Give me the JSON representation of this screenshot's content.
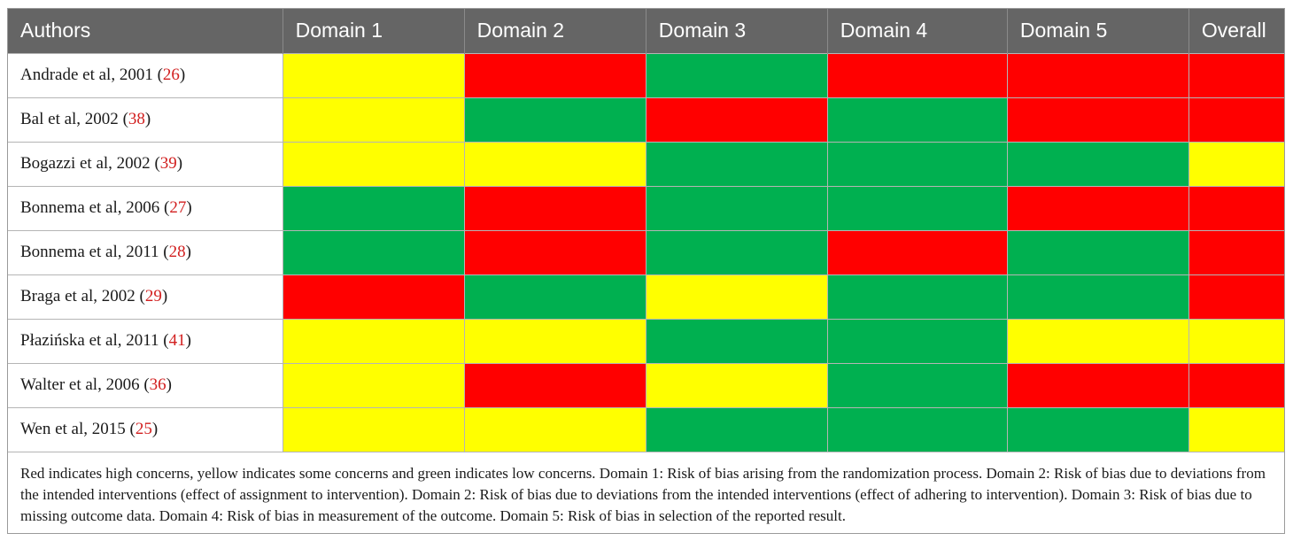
{
  "colors": {
    "header_bg": "#656565",
    "high": "#ff0000",
    "some": "#ffff00",
    "low": "#00b050",
    "reference": "#d21f1f"
  },
  "table": {
    "headers": [
      "Authors",
      "Domain 1",
      "Domain 2",
      "Domain 3",
      "Domain 4",
      "Domain 5",
      "Overall"
    ],
    "rows": [
      {
        "author": "Andrade et al, 2001",
        "ref": "26",
        "ratings": [
          "some",
          "high",
          "low",
          "high",
          "high",
          "high"
        ]
      },
      {
        "author": "Bal et al, 2002",
        "ref": "38",
        "ratings": [
          "some",
          "low",
          "high",
          "low",
          "high",
          "high"
        ]
      },
      {
        "author": "Bogazzi et al, 2002",
        "ref": "39",
        "ratings": [
          "some",
          "some",
          "low",
          "low",
          "low",
          "some"
        ]
      },
      {
        "author": "Bonnema et al, 2006",
        "ref": "27",
        "ratings": [
          "low",
          "high",
          "low",
          "low",
          "high",
          "high"
        ]
      },
      {
        "author": "Bonnema et al, 2011",
        "ref": "28",
        "ratings": [
          "low",
          "high",
          "low",
          "high",
          "low",
          "high"
        ]
      },
      {
        "author": "Braga et al, 2002",
        "ref": "29",
        "ratings": [
          "high",
          "low",
          "some",
          "low",
          "low",
          "high"
        ]
      },
      {
        "author": "Płazińska et al, 2011",
        "ref": "41",
        "ratings": [
          "some",
          "some",
          "low",
          "low",
          "some",
          "some"
        ]
      },
      {
        "author": "Walter et al, 2006",
        "ref": "36",
        "ratings": [
          "some",
          "high",
          "some",
          "low",
          "high",
          "high"
        ]
      },
      {
        "author": "Wen et al, 2015",
        "ref": "25",
        "ratings": [
          "some",
          "some",
          "low",
          "low",
          "low",
          "some"
        ]
      }
    ]
  },
  "footnote": "Red indicates high concerns, yellow indicates some concerns and green indicates low concerns. Domain 1: Risk of bias arising from the randomization process. Domain 2: Risk of bias due to deviations from the intended interventions (effect of assignment to intervention). Domain 2: Risk of bias due to deviations from the intended interventions (effect of adhering to intervention). Domain 3: Risk of bias due to missing outcome data. Domain 4: Risk of bias in measurement of the outcome. Domain 5: Risk of bias in selection of the reported result."
}
